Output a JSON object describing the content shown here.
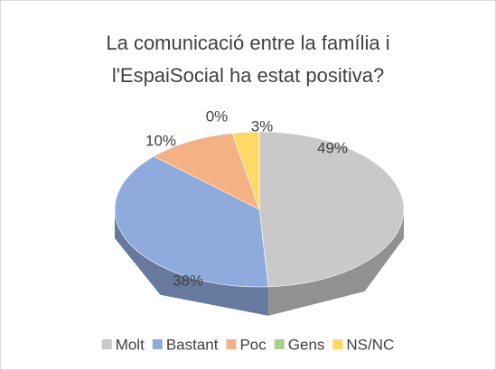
{
  "chart_data": {
    "type": "pie",
    "title": "La comunicació entre la família i l'EspaiSocial ha estat positiva?",
    "categories": [
      "Molt",
      "Bastant",
      "Poc",
      "Gens",
      "NS/NC"
    ],
    "values": [
      49,
      38,
      10,
      0,
      3
    ],
    "value_labels": [
      "49%",
      "38%",
      "10%",
      "0%",
      "3%"
    ],
    "colors": [
      "#c9c9c9",
      "#8faadc",
      "#f4b183",
      "#a9d18e",
      "#ffd966"
    ],
    "legend": "bottom",
    "three_d": true
  }
}
